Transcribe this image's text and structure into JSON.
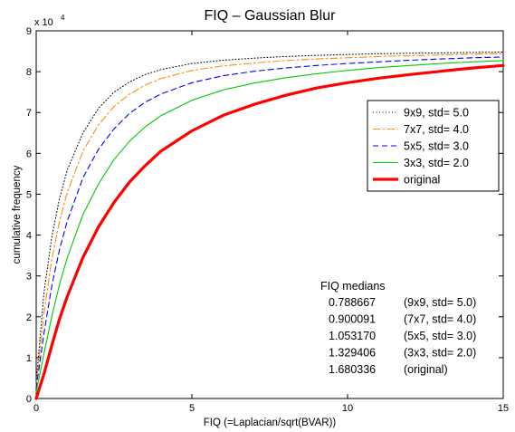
{
  "chart_data": {
    "type": "line",
    "title": "FIQ – Gaussian Blur",
    "xlabel": "FIQ (=Laplacian/sqrt(BVAR))",
    "ylabel": "cumulative frequency",
    "y_multiplier": "x 10",
    "y_multiplier_exp": "4",
    "xlim": [
      0,
      15
    ],
    "ylim": [
      0,
      9
    ],
    "x_ticks": [
      "0",
      "5",
      "10",
      "15"
    ],
    "y_ticks": [
      "0",
      "1",
      "2",
      "3",
      "4",
      "5",
      "6",
      "7",
      "8",
      "9"
    ],
    "legend_position": "right",
    "x": [
      0,
      0.25,
      0.5,
      0.75,
      1,
      1.5,
      2,
      2.5,
      3,
      3.5,
      4,
      5,
      6,
      7,
      8,
      9,
      10,
      11,
      12,
      13,
      14,
      15
    ],
    "series": [
      {
        "name": "9x9, std= 5.0",
        "color": "#000000",
        "style": "dotted",
        "values": [
          0.4,
          2.6,
          3.95,
          4.9,
          5.6,
          6.5,
          7.1,
          7.5,
          7.75,
          7.93,
          8.05,
          8.2,
          8.28,
          8.33,
          8.37,
          8.4,
          8.42,
          8.44,
          8.45,
          8.46,
          8.47,
          8.48
        ]
      },
      {
        "name": "7x7, std= 4.0",
        "color": "#ff8c1a",
        "style": "dashdot",
        "values": [
          0.3,
          2.1,
          3.4,
          4.35,
          5.05,
          6.05,
          6.7,
          7.15,
          7.45,
          7.67,
          7.83,
          8.03,
          8.14,
          8.21,
          8.27,
          8.31,
          8.34,
          8.37,
          8.39,
          8.41,
          8.43,
          8.44
        ]
      },
      {
        "name": "5x5, std= 3.0",
        "color": "#0000ff",
        "style": "dashed",
        "values": [
          0.25,
          1.6,
          2.75,
          3.65,
          4.35,
          5.4,
          6.1,
          6.6,
          6.98,
          7.25,
          7.45,
          7.73,
          7.9,
          8.01,
          8.09,
          8.15,
          8.2,
          8.24,
          8.28,
          8.31,
          8.34,
          8.36
        ]
      },
      {
        "name": "3x3, std= 2.0",
        "color": "#00cc00",
        "style": "solid",
        "values": [
          0.15,
          1.1,
          2.0,
          2.8,
          3.45,
          4.5,
          5.25,
          5.85,
          6.3,
          6.65,
          6.92,
          7.3,
          7.55,
          7.72,
          7.85,
          7.95,
          8.03,
          8.1,
          8.15,
          8.2,
          8.24,
          8.27
        ]
      },
      {
        "name": "original",
        "color": "#ff0000",
        "style": "thick",
        "values": [
          0.0,
          0.6,
          1.3,
          1.95,
          2.5,
          3.45,
          4.2,
          4.8,
          5.3,
          5.7,
          6.05,
          6.55,
          6.93,
          7.2,
          7.42,
          7.6,
          7.73,
          7.84,
          7.93,
          8.01,
          8.09,
          8.15
        ]
      }
    ],
    "medians_title": "FIQ medians",
    "medians": [
      {
        "value": "0.788667",
        "label": "(9x9, std= 5.0)"
      },
      {
        "value": "0.900091",
        "label": "(7x7, std= 4.0)"
      },
      {
        "value": "1.053170",
        "label": "(5x5, std= 3.0)"
      },
      {
        "value": "1.329406",
        "label": "(3x3, std= 2.0)"
      },
      {
        "value": "1.680336",
        "label": "(original)"
      }
    ]
  }
}
